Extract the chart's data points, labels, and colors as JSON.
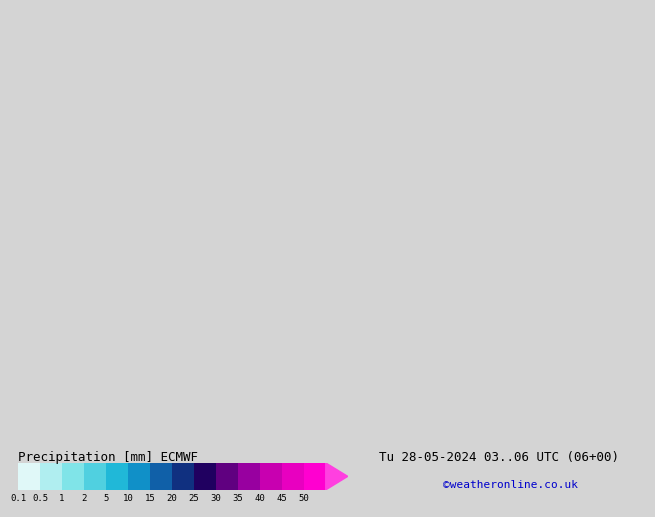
{
  "title_left": "Precipitation [mm] ECMWF",
  "title_right": "Tu 28-05-2024 03..06 UTC (06+00)",
  "credit": "©weatheronline.co.uk",
  "colorbar_values": [
    0.1,
    0.5,
    1,
    2,
    5,
    10,
    15,
    20,
    25,
    30,
    35,
    40,
    45,
    50
  ],
  "colorbar_colors": [
    "#e0f8f8",
    "#b0eef0",
    "#80e4e8",
    "#50d0e0",
    "#20b8d8",
    "#1090c8",
    "#1060a8",
    "#103080",
    "#200060",
    "#600080",
    "#9800a0",
    "#c800b0",
    "#e800c0",
    "#ff00d0",
    "#ff40e0"
  ],
  "bg_color": "#d4d4d4",
  "map_bg_color": "#d4d4d4",
  "label_fontsize": 9,
  "credit_color": "#0000cc",
  "title_fontsize": 9,
  "credit_fontsize": 8
}
